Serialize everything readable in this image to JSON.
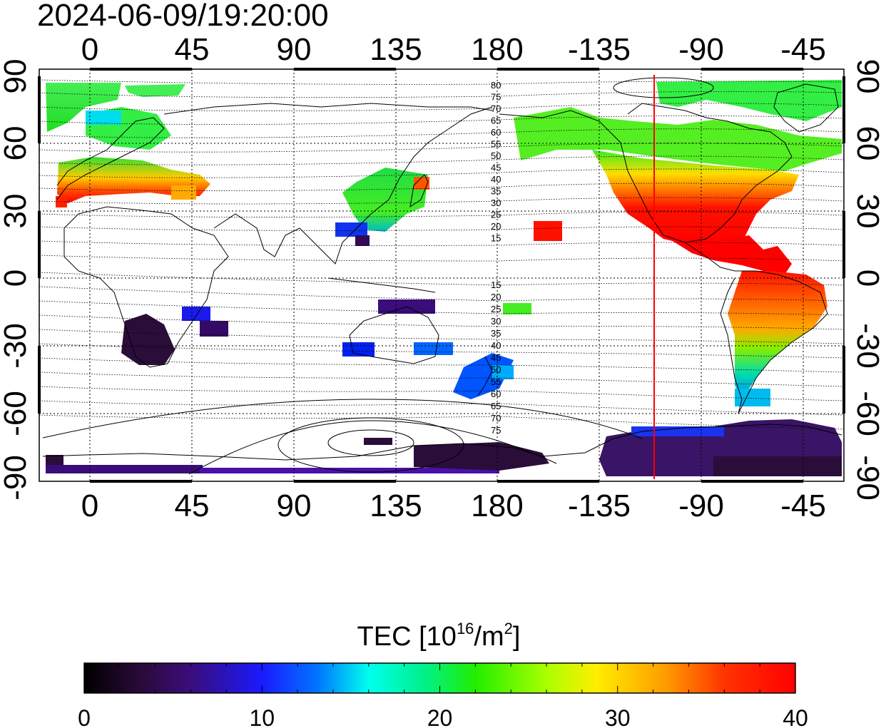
{
  "timestamp": "2024-06-09/19:20:00",
  "map": {
    "top_lon_labels": [
      "0",
      "45",
      "90",
      "135",
      "180",
      "-135",
      "-90",
      "-45"
    ],
    "bottom_lon_labels": [
      "0",
      "45",
      "90",
      "135",
      "180",
      "-135",
      "-90",
      "-45"
    ],
    "left_lat_labels": [
      "90",
      "60",
      "30",
      "0",
      "-30",
      "-60",
      "-90"
    ],
    "right_lat_labels": [
      "90",
      "60",
      "30",
      "0",
      "-30",
      "-60",
      "-90"
    ],
    "contour_labels_north": [
      "80",
      "75",
      "70",
      "65",
      "60",
      "55",
      "50",
      "45",
      "40",
      "35",
      "30",
      "25",
      "20",
      "15"
    ],
    "contour_labels_south": [
      "15",
      "20",
      "25",
      "30",
      "35",
      "40",
      "45",
      "50",
      "55",
      "60",
      "65",
      "70",
      "75"
    ],
    "terminator_longitude": -100,
    "terminator_color": "#ff0000"
  },
  "colorbar": {
    "title": "TEC  [10",
    "title_sup": "16",
    "title_mid": "/m",
    "title_sup2": "2",
    "title_end": "]",
    "tick_labels": [
      "0",
      "10",
      "20",
      "30",
      "40"
    ],
    "range": [
      0,
      40
    ]
  }
}
